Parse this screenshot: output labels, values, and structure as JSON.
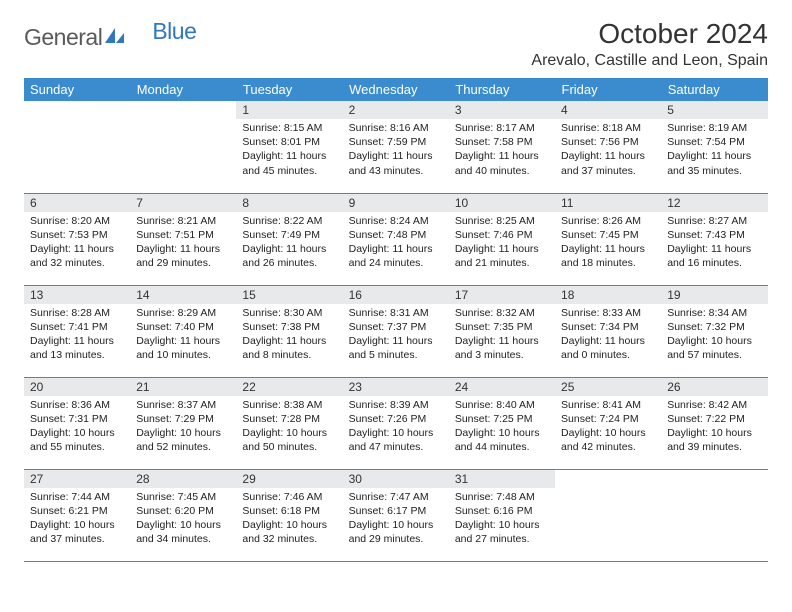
{
  "logo": {
    "part1": "General",
    "part2": "Blue"
  },
  "title": "October 2024",
  "location": "Arevalo, Castille and Leon, Spain",
  "colors": {
    "header_bg": "#3b8bcf",
    "header_fg": "#ffffff",
    "daynum_bg": "#e8e9ea",
    "rule": "#3b8bcf",
    "logo_gray": "#5a5a5a",
    "logo_blue": "#2f78c0"
  },
  "weekdays": [
    "Sunday",
    "Monday",
    "Tuesday",
    "Wednesday",
    "Thursday",
    "Friday",
    "Saturday"
  ],
  "weeks": [
    [
      null,
      null,
      {
        "n": "1",
        "sr": "8:15 AM",
        "ss": "8:01 PM",
        "dl": "11 hours and 45 minutes."
      },
      {
        "n": "2",
        "sr": "8:16 AM",
        "ss": "7:59 PM",
        "dl": "11 hours and 43 minutes."
      },
      {
        "n": "3",
        "sr": "8:17 AM",
        "ss": "7:58 PM",
        "dl": "11 hours and 40 minutes."
      },
      {
        "n": "4",
        "sr": "8:18 AM",
        "ss": "7:56 PM",
        "dl": "11 hours and 37 minutes."
      },
      {
        "n": "5",
        "sr": "8:19 AM",
        "ss": "7:54 PM",
        "dl": "11 hours and 35 minutes."
      }
    ],
    [
      {
        "n": "6",
        "sr": "8:20 AM",
        "ss": "7:53 PM",
        "dl": "11 hours and 32 minutes."
      },
      {
        "n": "7",
        "sr": "8:21 AM",
        "ss": "7:51 PM",
        "dl": "11 hours and 29 minutes."
      },
      {
        "n": "8",
        "sr": "8:22 AM",
        "ss": "7:49 PM",
        "dl": "11 hours and 26 minutes."
      },
      {
        "n": "9",
        "sr": "8:24 AM",
        "ss": "7:48 PM",
        "dl": "11 hours and 24 minutes."
      },
      {
        "n": "10",
        "sr": "8:25 AM",
        "ss": "7:46 PM",
        "dl": "11 hours and 21 minutes."
      },
      {
        "n": "11",
        "sr": "8:26 AM",
        "ss": "7:45 PM",
        "dl": "11 hours and 18 minutes."
      },
      {
        "n": "12",
        "sr": "8:27 AM",
        "ss": "7:43 PM",
        "dl": "11 hours and 16 minutes."
      }
    ],
    [
      {
        "n": "13",
        "sr": "8:28 AM",
        "ss": "7:41 PM",
        "dl": "11 hours and 13 minutes."
      },
      {
        "n": "14",
        "sr": "8:29 AM",
        "ss": "7:40 PM",
        "dl": "11 hours and 10 minutes."
      },
      {
        "n": "15",
        "sr": "8:30 AM",
        "ss": "7:38 PM",
        "dl": "11 hours and 8 minutes."
      },
      {
        "n": "16",
        "sr": "8:31 AM",
        "ss": "7:37 PM",
        "dl": "11 hours and 5 minutes."
      },
      {
        "n": "17",
        "sr": "8:32 AM",
        "ss": "7:35 PM",
        "dl": "11 hours and 3 minutes."
      },
      {
        "n": "18",
        "sr": "8:33 AM",
        "ss": "7:34 PM",
        "dl": "11 hours and 0 minutes."
      },
      {
        "n": "19",
        "sr": "8:34 AM",
        "ss": "7:32 PM",
        "dl": "10 hours and 57 minutes."
      }
    ],
    [
      {
        "n": "20",
        "sr": "8:36 AM",
        "ss": "7:31 PM",
        "dl": "10 hours and 55 minutes."
      },
      {
        "n": "21",
        "sr": "8:37 AM",
        "ss": "7:29 PM",
        "dl": "10 hours and 52 minutes."
      },
      {
        "n": "22",
        "sr": "8:38 AM",
        "ss": "7:28 PM",
        "dl": "10 hours and 50 minutes."
      },
      {
        "n": "23",
        "sr": "8:39 AM",
        "ss": "7:26 PM",
        "dl": "10 hours and 47 minutes."
      },
      {
        "n": "24",
        "sr": "8:40 AM",
        "ss": "7:25 PM",
        "dl": "10 hours and 44 minutes."
      },
      {
        "n": "25",
        "sr": "8:41 AM",
        "ss": "7:24 PM",
        "dl": "10 hours and 42 minutes."
      },
      {
        "n": "26",
        "sr": "8:42 AM",
        "ss": "7:22 PM",
        "dl": "10 hours and 39 minutes."
      }
    ],
    [
      {
        "n": "27",
        "sr": "7:44 AM",
        "ss": "6:21 PM",
        "dl": "10 hours and 37 minutes."
      },
      {
        "n": "28",
        "sr": "7:45 AM",
        "ss": "6:20 PM",
        "dl": "10 hours and 34 minutes."
      },
      {
        "n": "29",
        "sr": "7:46 AM",
        "ss": "6:18 PM",
        "dl": "10 hours and 32 minutes."
      },
      {
        "n": "30",
        "sr": "7:47 AM",
        "ss": "6:17 PM",
        "dl": "10 hours and 29 minutes."
      },
      {
        "n": "31",
        "sr": "7:48 AM",
        "ss": "6:16 PM",
        "dl": "10 hours and 27 minutes."
      },
      null,
      null
    ]
  ],
  "labels": {
    "sunrise": "Sunrise: ",
    "sunset": "Sunset: ",
    "daylight": "Daylight: "
  }
}
